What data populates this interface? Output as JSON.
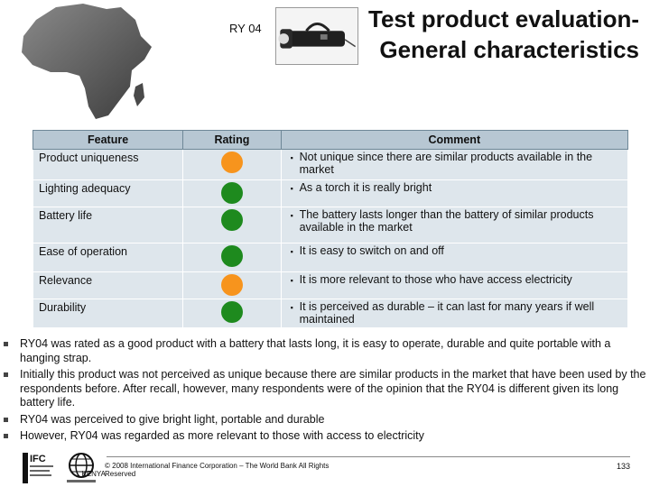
{
  "header": {
    "product_code": "RY 04",
    "title_line1": "Test product evaluation-",
    "title_line2": "General characteristics"
  },
  "table": {
    "headers": [
      "Feature",
      "Rating",
      "Comment"
    ],
    "rows": [
      {
        "feature": "Product uniqueness",
        "rating": "orange",
        "comment": "Not unique since there are similar products available in the market"
      },
      {
        "feature": "Lighting adequacy",
        "rating": "green",
        "comment": "As a torch it is really bright"
      },
      {
        "feature": "Battery life",
        "rating": "green",
        "comment": "The battery lasts longer than the battery of similar products available in the market"
      },
      {
        "feature": "Ease of operation",
        "rating": "green",
        "comment": "It is easy to switch on and off"
      },
      {
        "feature": "Relevance",
        "rating": "orange",
        "comment": "It is more relevant to those who have access electricity"
      },
      {
        "feature": "Durability",
        "rating": "green",
        "comment": "It is perceived as durable – it can last for many years if well maintained"
      }
    ]
  },
  "summary": [
    "RY04 was rated as a good product with a battery that lasts long, it is easy to operate, durable and quite portable with a hanging strap.",
    "Initially this product was not perceived as unique because there are similar products in the market that have been used by the respondents before. After recall, however, many respondents were of the opinion that the RY04 is different given its long battery life.",
    "RY04 was perceived to give bright light, portable and durable",
    "However, RY04 was regarded as more relevant to those with access to electricity"
  ],
  "footer": {
    "copyright": "© 2008 International Finance Corporation – The World Bank All Rights Reserved",
    "overlap_text": "KENYA",
    "page_number": "133",
    "ifc_logo_text": "IFC"
  },
  "colors": {
    "orange": "#f7941d",
    "green": "#1e8a1e",
    "table_header": "#b7c7d3",
    "table_row": "#dee6ec"
  }
}
